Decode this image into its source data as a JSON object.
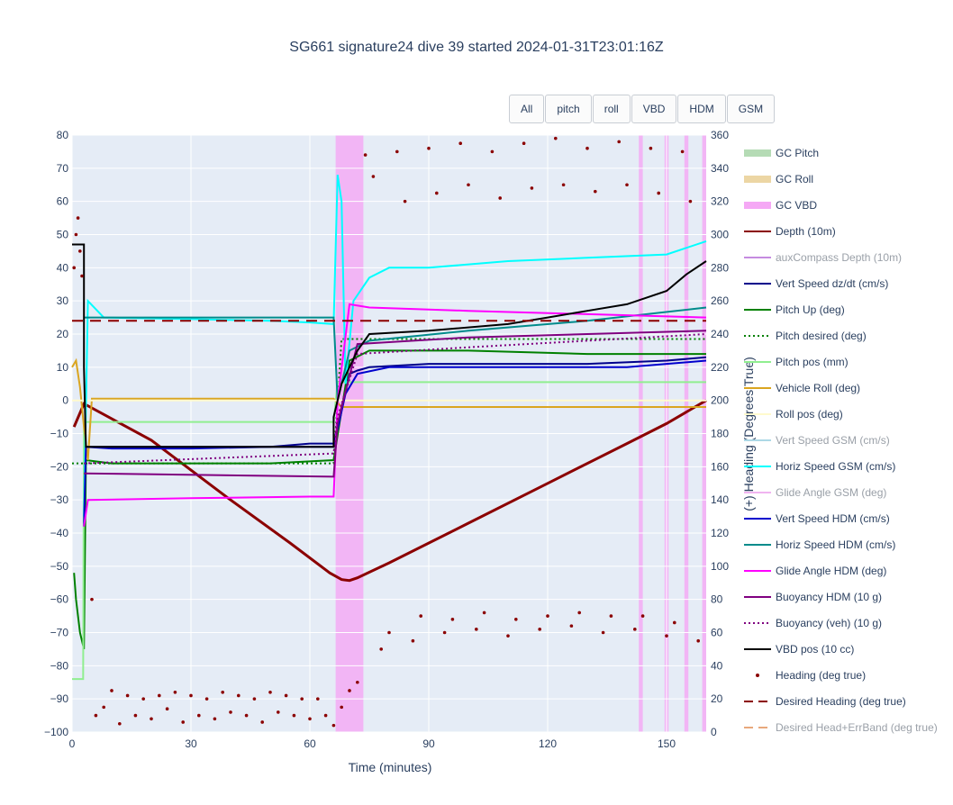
{
  "chart_data": {
    "type": "line",
    "title": "SG661 signature24 dive 39 started 2024-01-31T23:01:16Z",
    "xlabel": "Time (minutes)",
    "ylabel": "",
    "y2label": "(+) Heading (Degrees True)",
    "xlim": [
      0,
      160
    ],
    "ylim": [
      -100,
      80
    ],
    "y2lim": [
      0,
      360
    ],
    "x_ticks": [
      0,
      30,
      60,
      90,
      120,
      150
    ],
    "y_ticks": [
      -100,
      -90,
      -80,
      -70,
      -60,
      -50,
      -40,
      -30,
      -20,
      -10,
      0,
      10,
      20,
      30,
      40,
      50,
      60,
      70,
      80
    ],
    "y2_ticks": [
      0,
      20,
      40,
      60,
      80,
      100,
      120,
      140,
      160,
      180,
      200,
      220,
      240,
      260,
      280,
      300,
      320,
      340,
      360
    ],
    "grid": true,
    "legend_position": "right",
    "buttons": [
      "All",
      "pitch",
      "roll",
      "VBD",
      "HDM",
      "GSM"
    ],
    "gc_vbd_bands": [
      [
        66.5,
        73.5
      ],
      [
        143,
        144
      ],
      [
        149.5,
        150.5
      ],
      [
        154.5,
        155.5
      ],
      [
        159,
        160
      ]
    ],
    "series": [
      {
        "name": "GC Pitch",
        "color": "#b5dbb5",
        "style": "band",
        "visible": true
      },
      {
        "name": "GC Roll",
        "color": "#ecd6a4",
        "style": "band",
        "visible": true
      },
      {
        "name": "GC VBD",
        "color": "#f5a8f5",
        "style": "band",
        "visible": true
      },
      {
        "name": "Depth (10m)",
        "color": "#8b0000",
        "style": "solid",
        "visible": true,
        "x": [
          0.5,
          3,
          20,
          40,
          55,
          65,
          68,
          70,
          72,
          80,
          100,
          120,
          140,
          150,
          160
        ],
        "y": [
          -8,
          -1,
          -12,
          -30,
          -43,
          -52,
          -54,
          -54.3,
          -53.5,
          -49,
          -37,
          -25,
          -13,
          -7,
          0
        ]
      },
      {
        "name": "auxCompass Depth (10m)",
        "color": "#c58be0",
        "style": "solid",
        "visible": false
      },
      {
        "name": "Vert Speed dz/dt (cm/s)",
        "color": "#00008b",
        "style": "solid",
        "visible": true,
        "x": [
          3,
          3.5,
          10,
          30,
          50,
          60,
          66,
          68,
          70,
          72,
          75,
          90,
          110,
          130,
          150,
          160
        ],
        "y": [
          -20,
          -14,
          -14,
          -14,
          -14,
          -13,
          -13,
          -2,
          8,
          9,
          10,
          11,
          11,
          11,
          12,
          13
        ]
      },
      {
        "name": "Pitch Up (deg)",
        "color": "#008000",
        "style": "solid",
        "visible": true,
        "x": [
          0.5,
          1,
          2,
          3,
          3.5,
          10,
          30,
          50,
          66,
          70,
          75,
          100,
          130,
          160
        ],
        "y": [
          -52,
          -60,
          -70,
          -75,
          -18,
          -19,
          -19,
          -19,
          -18,
          12,
          15,
          15,
          14,
          14
        ]
      },
      {
        "name": "Pitch desired (deg)",
        "color": "#008000",
        "style": "dot",
        "visible": true,
        "x": [
          0,
          66,
          68,
          160
        ],
        "y": [
          -19,
          -19,
          18.5,
          18.5
        ]
      },
      {
        "name": "Pitch pos (mm)",
        "color": "#90ee90",
        "style": "solid",
        "visible": true,
        "x": [
          0,
          2.8,
          3,
          66,
          67,
          160
        ],
        "y": [
          -84,
          -84,
          -6.5,
          -6.5,
          5.5,
          5.5
        ]
      },
      {
        "name": "Vehicle Roll (deg)",
        "color": "#daa520",
        "style": "solid",
        "visible": true,
        "x": [
          0,
          1,
          2,
          3,
          4,
          5,
          66,
          68,
          160
        ],
        "y": [
          10,
          12,
          4,
          -8,
          -18,
          0.5,
          0.5,
          -2,
          -2
        ]
      },
      {
        "name": "Roll pos (deg)",
        "color": "#fffacd",
        "style": "solid",
        "visible": true,
        "x": [
          0,
          160
        ],
        "y": [
          0,
          0
        ]
      },
      {
        "name": "Vert Speed GSM (cm/s)",
        "color": "#add8e6",
        "style": "solid",
        "visible": false
      },
      {
        "name": "Horiz Speed GSM (cm/s)",
        "color": "#00ffff",
        "style": "solid",
        "visible": true,
        "x": [
          3,
          4,
          8,
          30,
          50,
          60,
          66,
          67,
          68,
          69,
          71,
          75,
          80,
          90,
          110,
          130,
          150,
          160
        ],
        "y": [
          -35,
          30,
          25,
          24.5,
          24,
          23.5,
          23,
          68,
          60,
          5,
          30,
          37,
          40,
          40,
          42,
          43,
          44,
          48
        ]
      },
      {
        "name": "Glide Angle GSM (deg)",
        "color": "#f0b4f0",
        "style": "solid",
        "visible": false
      },
      {
        "name": "Vert Speed HDM (cm/s)",
        "color": "#0000cd",
        "style": "solid",
        "visible": true,
        "x": [
          3,
          3.5,
          10,
          30,
          50,
          60,
          66,
          69,
          72,
          80,
          100,
          120,
          140,
          160
        ],
        "y": [
          -38,
          -14,
          -14.5,
          -14.5,
          -14,
          -14,
          -14,
          2,
          8,
          10,
          10,
          10,
          10,
          12
        ]
      },
      {
        "name": "Horiz Speed HDM (cm/s)",
        "color": "#008b8b",
        "style": "solid",
        "visible": true,
        "x": [
          3,
          66,
          67,
          70,
          75,
          100,
          130,
          160
        ],
        "y": [
          25,
          25,
          0,
          15,
          18,
          21,
          24,
          28
        ]
      },
      {
        "name": "Glide Angle HDM (deg)",
        "color": "#ff00ff",
        "style": "solid",
        "visible": true,
        "x": [
          3,
          4,
          30,
          60,
          66,
          67,
          70,
          75,
          100,
          130,
          160
        ],
        "y": [
          -38,
          -30,
          -29.5,
          -29,
          -29,
          0,
          29,
          28,
          27,
          26,
          25
        ]
      },
      {
        "name": "Buoyancy HDM (10 g)",
        "color": "#800080",
        "style": "solid",
        "visible": true,
        "x": [
          3,
          66,
          67,
          72,
          100,
          130,
          160
        ],
        "y": [
          -22,
          -23,
          -7,
          17,
          19,
          20,
          21
        ]
      },
      {
        "name": "Buoyancy (veh) (10 g)",
        "color": "#800080",
        "style": "dot",
        "visible": true,
        "x": [
          3,
          66,
          67,
          72,
          100,
          130,
          160
        ],
        "y": [
          -19,
          -16,
          -5,
          14,
          16,
          18,
          20
        ]
      },
      {
        "name": "VBD pos (10 cc)",
        "color": "#000000",
        "style": "solid",
        "visible": true,
        "x": [
          0,
          3,
          3,
          3.5,
          66,
          66,
          67,
          68,
          70,
          72,
          75,
          90,
          110,
          120,
          130,
          140,
          150,
          155,
          160
        ],
        "y": [
          47,
          47,
          10,
          -14,
          -14,
          -5,
          0,
          5,
          10,
          15,
          20,
          21,
          23,
          25,
          27,
          29,
          33,
          38,
          42
        ]
      },
      {
        "name": "Heading (deg true)",
        "color": "#8b0000",
        "style": "markers",
        "visible": true,
        "axis": "y2",
        "x": [
          0.5,
          1,
          1.5,
          2,
          2.5,
          5,
          6,
          8,
          10,
          12,
          14,
          16,
          18,
          20,
          22,
          24,
          26,
          28,
          30,
          32,
          34,
          36,
          38,
          40,
          42,
          44,
          46,
          48,
          50,
          52,
          54,
          56,
          58,
          60,
          62,
          64,
          66,
          68,
          70,
          72,
          74,
          76,
          78,
          80,
          82,
          84,
          86,
          88,
          90,
          92,
          94,
          96,
          98,
          100,
          102,
          104,
          106,
          108,
          110,
          112,
          114,
          116,
          118,
          120,
          122,
          124,
          126,
          128,
          130,
          132,
          134,
          136,
          138,
          140,
          142,
          144,
          146,
          148,
          150,
          152,
          154,
          156,
          158
        ],
        "y": [
          280,
          300,
          310,
          290,
          275,
          80,
          10,
          15,
          25,
          5,
          22,
          10,
          20,
          8,
          22,
          14,
          24,
          6,
          22,
          10,
          20,
          8,
          24,
          12,
          22,
          10,
          20,
          6,
          24,
          12,
          22,
          10,
          20,
          8,
          20,
          10,
          4,
          15,
          25,
          30,
          348,
          335,
          50,
          60,
          350,
          320,
          55,
          70,
          352,
          325,
          60,
          68,
          355,
          330,
          62,
          72,
          350,
          322,
          58,
          68,
          355,
          328,
          62,
          70,
          358,
          330,
          64,
          72,
          352,
          326,
          60,
          70,
          356,
          330,
          62,
          70,
          352,
          325,
          58,
          66,
          350,
          320,
          55
        ]
      },
      {
        "name": "Desired Heading (deg true)",
        "color": "#8b0000",
        "style": "dash",
        "visible": true,
        "axis": "y2",
        "x": [
          0,
          160
        ],
        "y": [
          248,
          248
        ]
      },
      {
        "name": "Desired Head+ErrBand (deg true)",
        "color": "#e8a87c",
        "style": "dash",
        "visible": false
      }
    ]
  }
}
